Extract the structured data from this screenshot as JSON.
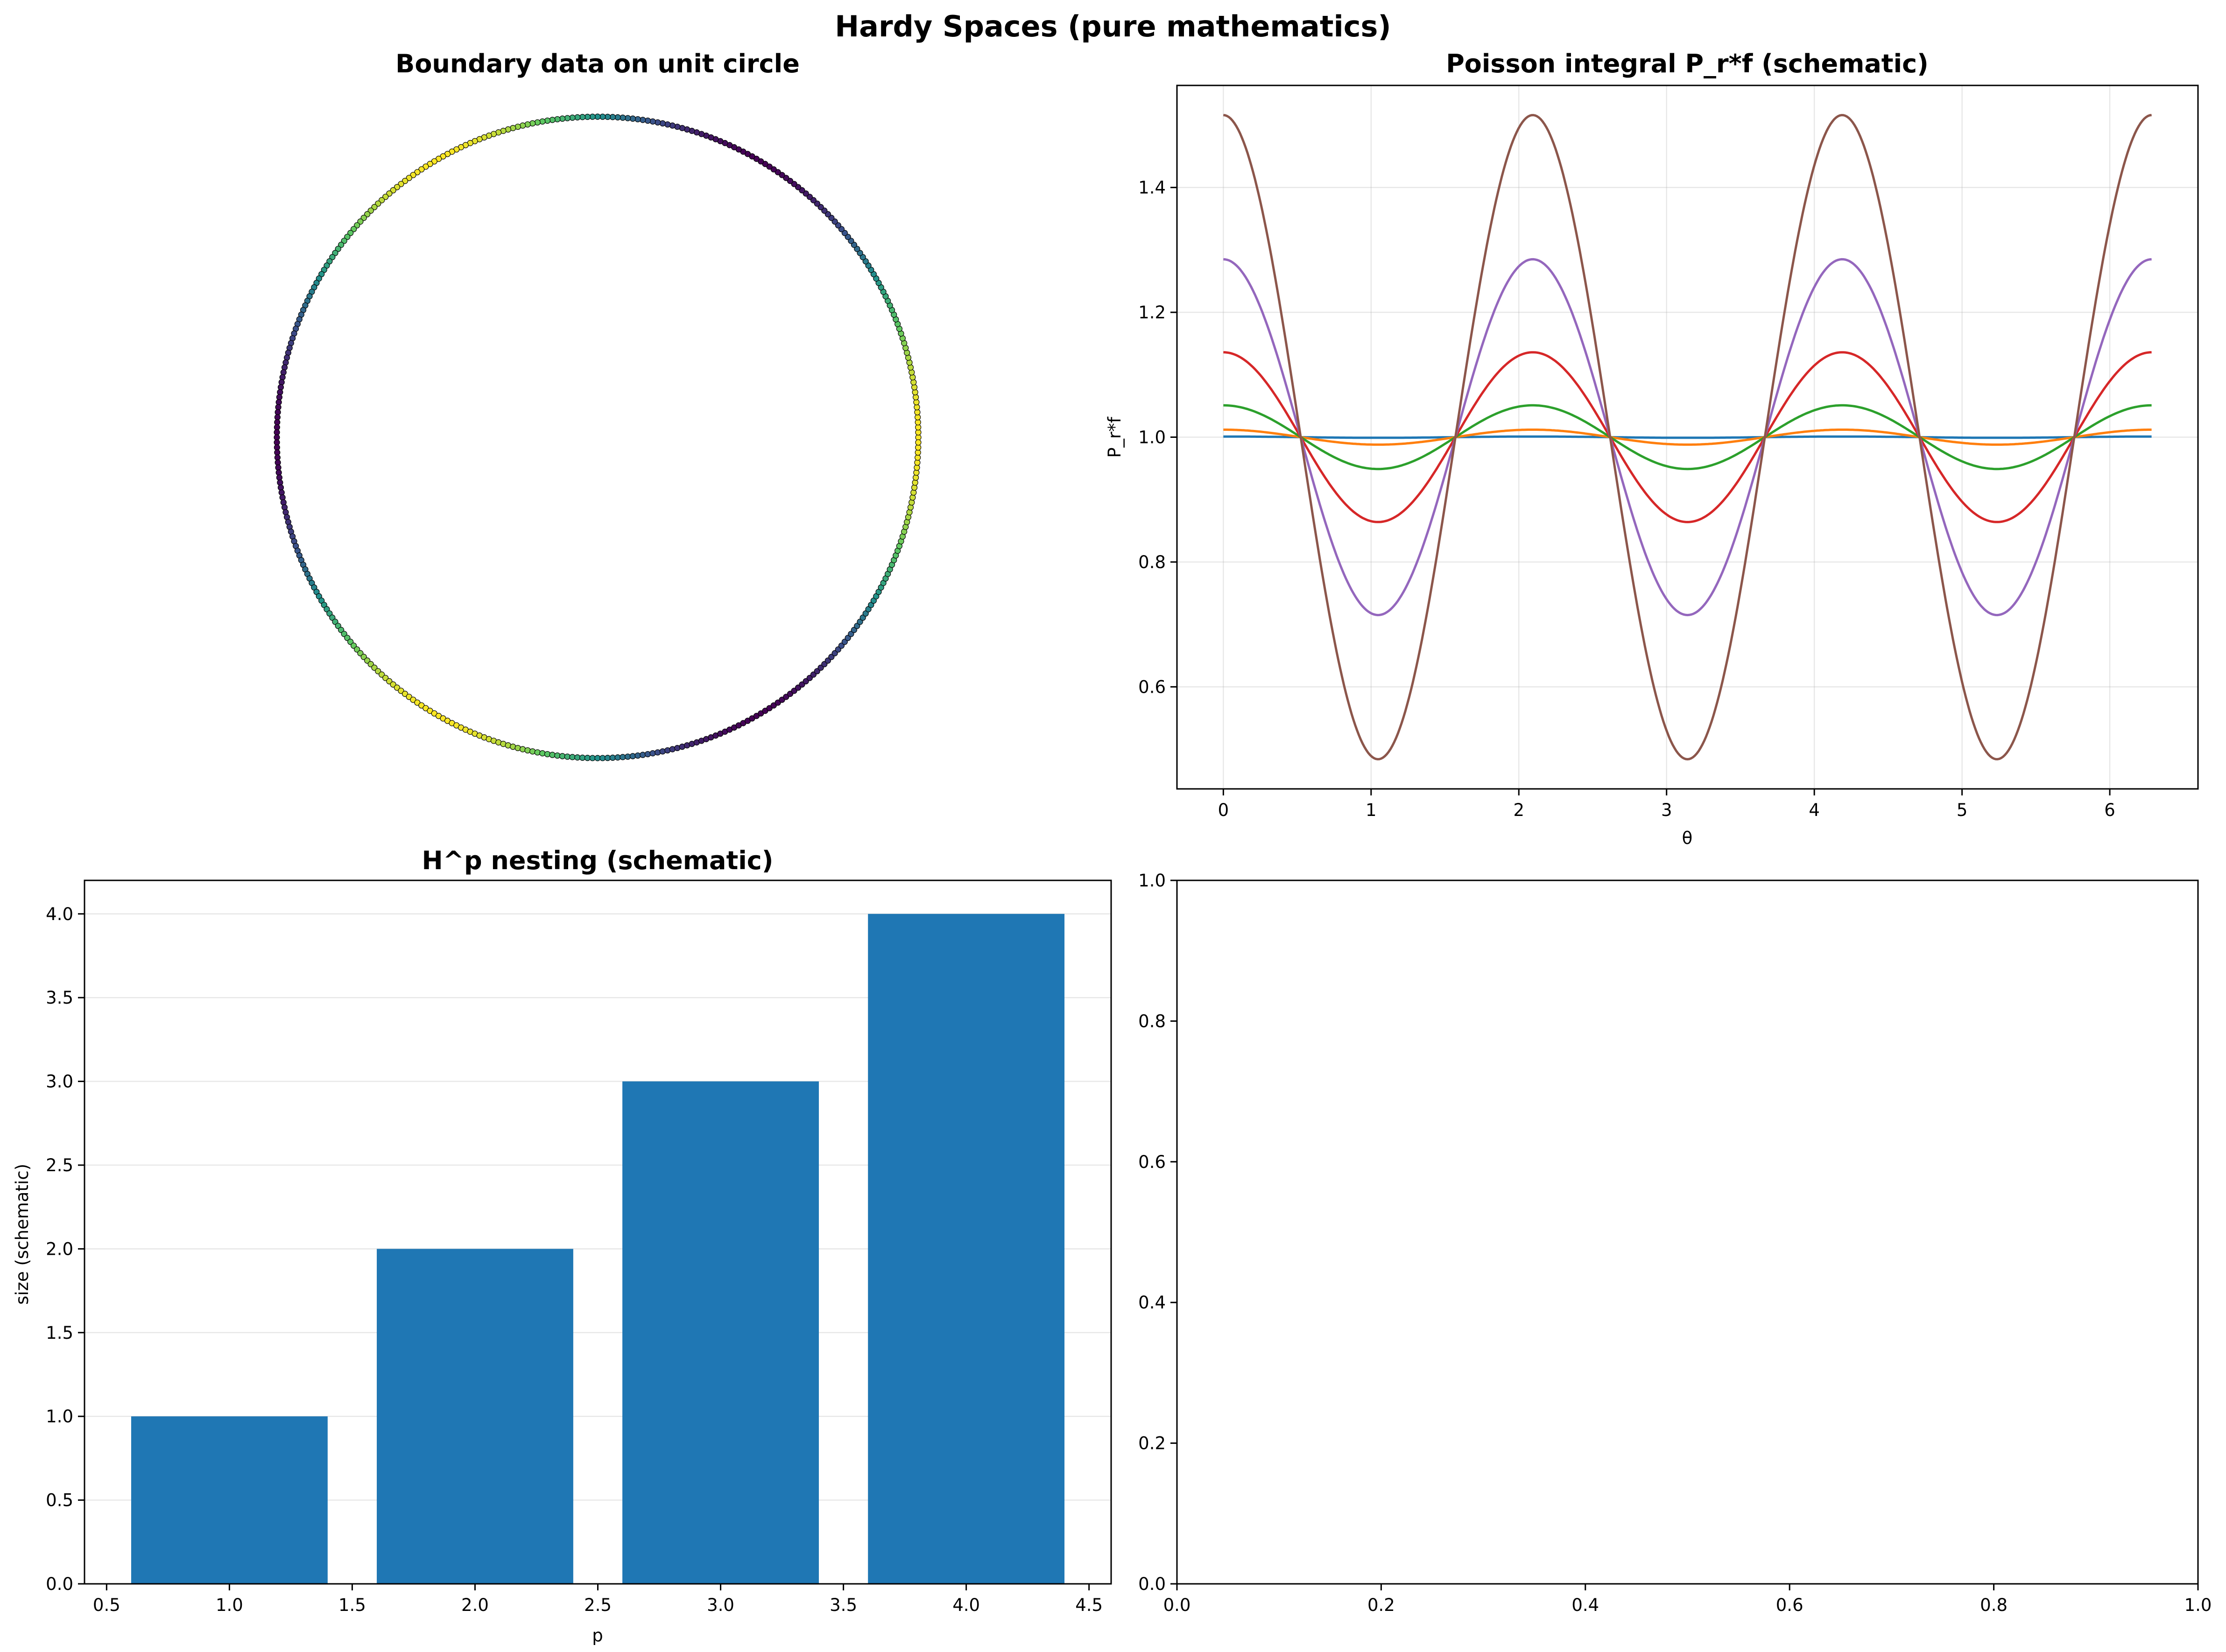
{
  "figure": {
    "title": "Hardy Spaces (pure mathematics)"
  },
  "chart_data": [
    {
      "type": "scatter",
      "title": "Boundary data on unit circle",
      "xlabel": "",
      "ylabel": "",
      "axis": "off",
      "aspect": "equal",
      "description_points": {
        "shape": "circle",
        "center": [
          0,
          0
        ],
        "radius": 1,
        "count": 400,
        "colormap": "viridis",
        "color_value": "cos(3θ)"
      }
    },
    {
      "type": "line",
      "title": "Poisson integral P_r*f (schematic)",
      "xlabel": "θ",
      "ylabel": "P_r*f",
      "xlim": [
        -0.314,
        6.597
      ],
      "ylim": [
        0.4365,
        1.5635
      ],
      "xticks": [
        0,
        1,
        2,
        3,
        4,
        5,
        6
      ],
      "yticks": [
        0.6,
        0.8,
        1.0,
        1.2,
        1.4
      ],
      "grid": true,
      "x_range": [
        0,
        6.283
      ],
      "function": "1 + amplitude * cos(3θ)",
      "series": [
        {
          "amplitude": 0.001,
          "color": "#1f77b4"
        },
        {
          "amplitude": 0.012,
          "color": "#ff7f0e"
        },
        {
          "amplitude": 0.051,
          "color": "#2ca02c"
        },
        {
          "amplitude": 0.136,
          "color": "#d62728"
        },
        {
          "amplitude": 0.285,
          "color": "#9467bd"
        },
        {
          "amplitude": 0.516,
          "color": "#8c564b"
        }
      ]
    },
    {
      "type": "bar",
      "title": "H^p nesting (schematic)",
      "xlabel": "p",
      "ylabel": "size (schematic)",
      "x": [
        1,
        2,
        3,
        4
      ],
      "values": [
        1,
        2,
        3,
        4
      ],
      "bar_width": 0.8,
      "color": "#1f77b4",
      "xlim": [
        0.41,
        4.59
      ],
      "ylim": [
        0,
        4.2
      ],
      "xticks": [
        0.5,
        1.0,
        1.5,
        2.0,
        2.5,
        3.0,
        3.5,
        4.0,
        4.5
      ],
      "yticks": [
        0.0,
        0.5,
        1.0,
        1.5,
        2.0,
        2.5,
        3.0,
        3.5,
        4.0
      ],
      "grid": "y"
    },
    {
      "type": "line",
      "title": "",
      "xlabel": "",
      "ylabel": "",
      "xlim": [
        0,
        1
      ],
      "ylim": [
        0,
        1
      ],
      "xticks": [
        0.0,
        0.2,
        0.4,
        0.6,
        0.8,
        1.0
      ],
      "yticks": [
        0.0,
        0.2,
        0.4,
        0.6,
        0.8,
        1.0
      ],
      "series": []
    }
  ]
}
